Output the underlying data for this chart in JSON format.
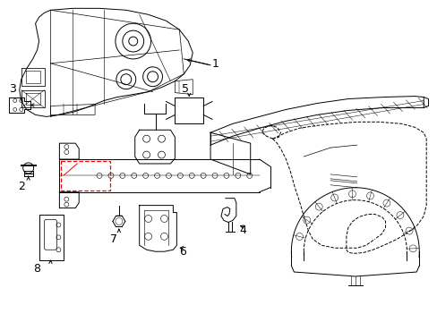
{
  "background_color": "#ffffff",
  "line_color": "#000000",
  "red_color": "#ff0000",
  "figsize": [
    4.89,
    3.6
  ],
  "dpi": 100
}
